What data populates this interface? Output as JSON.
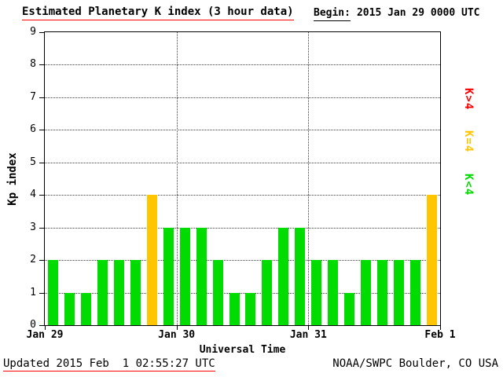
{
  "header": {
    "title": "Estimated Planetary K index (3 hour data)",
    "begin_label": "Begin:",
    "begin_value": "2015 Jan 29 0000 UTC"
  },
  "axes": {
    "ylabel": "Kp index",
    "xlabel": "Universal Time"
  },
  "legend": {
    "items": [
      {
        "label": "K>4",
        "color": "#ff0000"
      },
      {
        "label": "K=4",
        "color": "#ffc600"
      },
      {
        "label": "K<4",
        "color": "#00dc00"
      }
    ]
  },
  "footer": {
    "updated": "Updated 2015 Feb  1 02:55:27 UTC",
    "credit": "NOAA/SWPC Boulder, CO USA"
  },
  "chart_data": {
    "type": "bar",
    "title": "Estimated Planetary K index (3 hour data)",
    "xlabel": "Universal Time",
    "ylabel": "Kp index",
    "ylim": [
      0,
      9
    ],
    "y_ticks": [
      0,
      1,
      2,
      3,
      4,
      5,
      6,
      7,
      8,
      9
    ],
    "x_tick_labels": [
      "Jan 29",
      "Jan 30",
      "Jan 31",
      "Feb 1"
    ],
    "interval_hours": 3,
    "bars_per_day": 8,
    "values": [
      2,
      1,
      1,
      2,
      2,
      2,
      4,
      3,
      3,
      3,
      2,
      1,
      1,
      2,
      3,
      3,
      2,
      2,
      1,
      2,
      2,
      2,
      2,
      4
    ],
    "color_rule": {
      "lt4": "#00dc00",
      "eq4": "#ffc600",
      "gt4": "#ff0000"
    },
    "legend_entries": [
      "K>4",
      "K=4",
      "K<4"
    ],
    "grid": "dotted",
    "legend_position": "right"
  }
}
